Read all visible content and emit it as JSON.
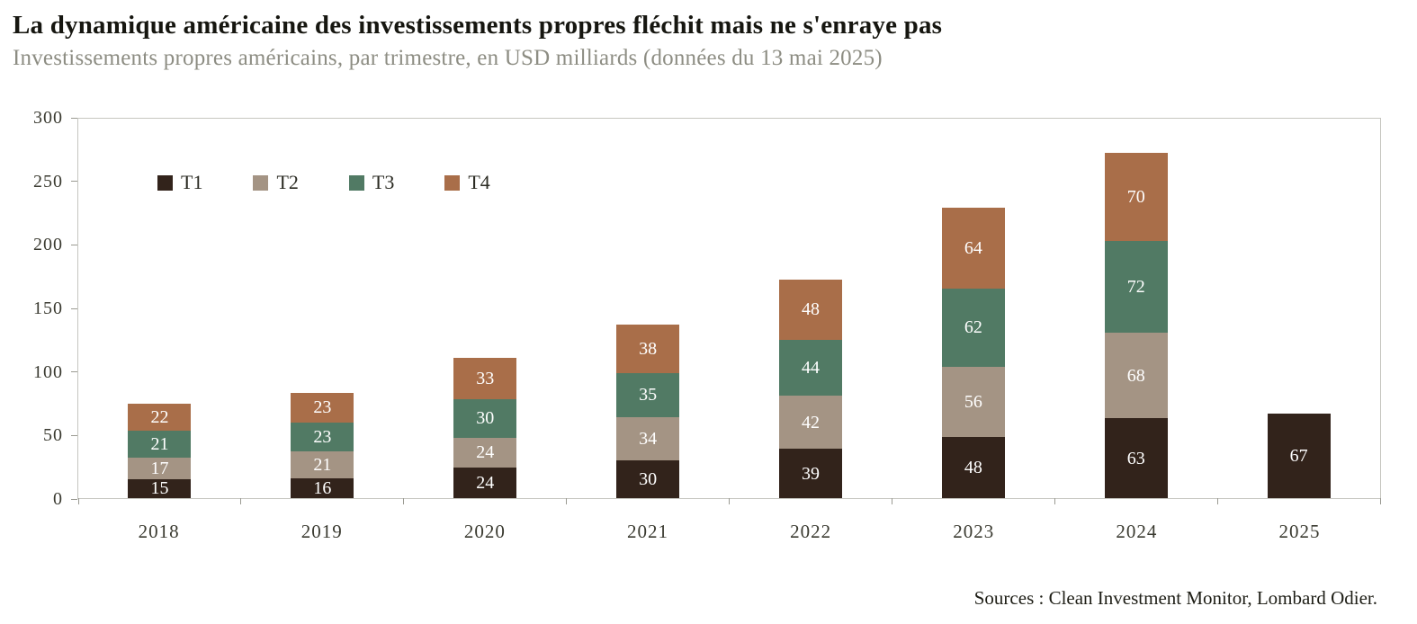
{
  "header": {
    "title": "La dynamique américaine des investissements propres fléchit mais ne s'enraye pas",
    "subtitle": "Investissements propres américains, par trimestre, en USD milliards (données du 13 mai 2025)"
  },
  "footer": {
    "source": "Sources : Clean Investment Monitor, Lombard Odier."
  },
  "chart_data": {
    "type": "bar",
    "stacked": true,
    "title": "La dynamique américaine des investissements propres fléchit mais ne s'enraye pas",
    "subtitle": "Investissements propres américains, par trimestre, en USD milliards (données du 13 mai 2025)",
    "categories": [
      "2018",
      "2019",
      "2020",
      "2021",
      "2022",
      "2023",
      "2024",
      "2025"
    ],
    "series": [
      {
        "name": "T1",
        "color": "#32231b",
        "values": [
          15,
          16,
          24,
          30,
          39,
          48,
          63,
          67
        ]
      },
      {
        "name": "T2",
        "color": "#a49484",
        "values": [
          17,
          21,
          24,
          34,
          42,
          56,
          68,
          null
        ]
      },
      {
        "name": "T3",
        "color": "#517a64",
        "values": [
          21,
          23,
          30,
          35,
          44,
          62,
          72,
          null
        ]
      },
      {
        "name": "T4",
        "color": "#a96e49",
        "values": [
          22,
          23,
          33,
          38,
          48,
          64,
          70,
          null
        ]
      }
    ],
    "xlabel": "",
    "ylabel": "",
    "ylim": [
      0,
      300
    ],
    "yticks": [
      0,
      50,
      100,
      150,
      200,
      250,
      300
    ],
    "grid": false,
    "legend_position": "top-left-inside",
    "value_label_color": "#ffffff"
  }
}
